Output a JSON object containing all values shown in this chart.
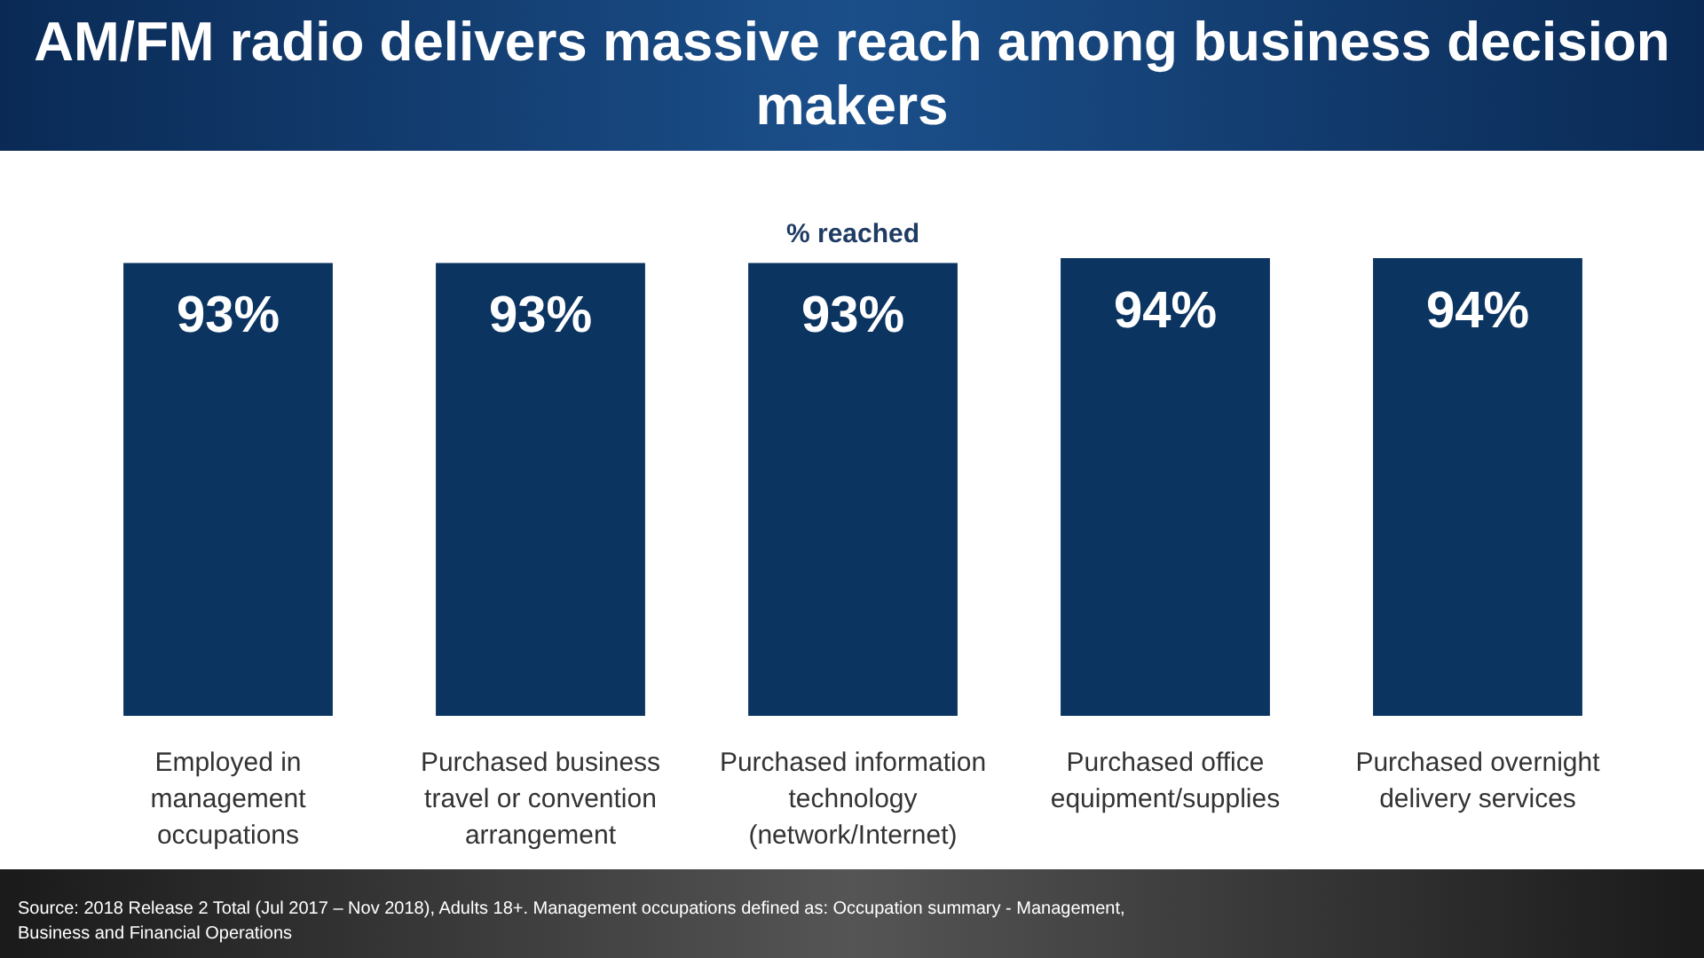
{
  "chart_data": {
    "type": "bar",
    "title": "AM/FM radio delivers massive reach among business decision makers",
    "subtitle": "% reached",
    "categories": [
      "Employed in management occupations",
      "Purchased business travel or convention arrangement",
      "Purchased information technology (network/Internet)",
      "Purchased office equipment/supplies",
      "Purchased overnight delivery services"
    ],
    "values": [
      93,
      93,
      93,
      94,
      94
    ],
    "color": "#0b3461",
    "value_labels": [
      "93%",
      "93%",
      "93%",
      "94%",
      "94%"
    ],
    "ylim": [
      0,
      94
    ],
    "tick_labels": "x",
    "annotations": [
      "Source: 2018 Release 2 Total (Jul 2017 – Nov 2018), Adults 18+. Management occupations defined as: Occupation summary - Management, Business and Financial Operations"
    ]
  }
}
